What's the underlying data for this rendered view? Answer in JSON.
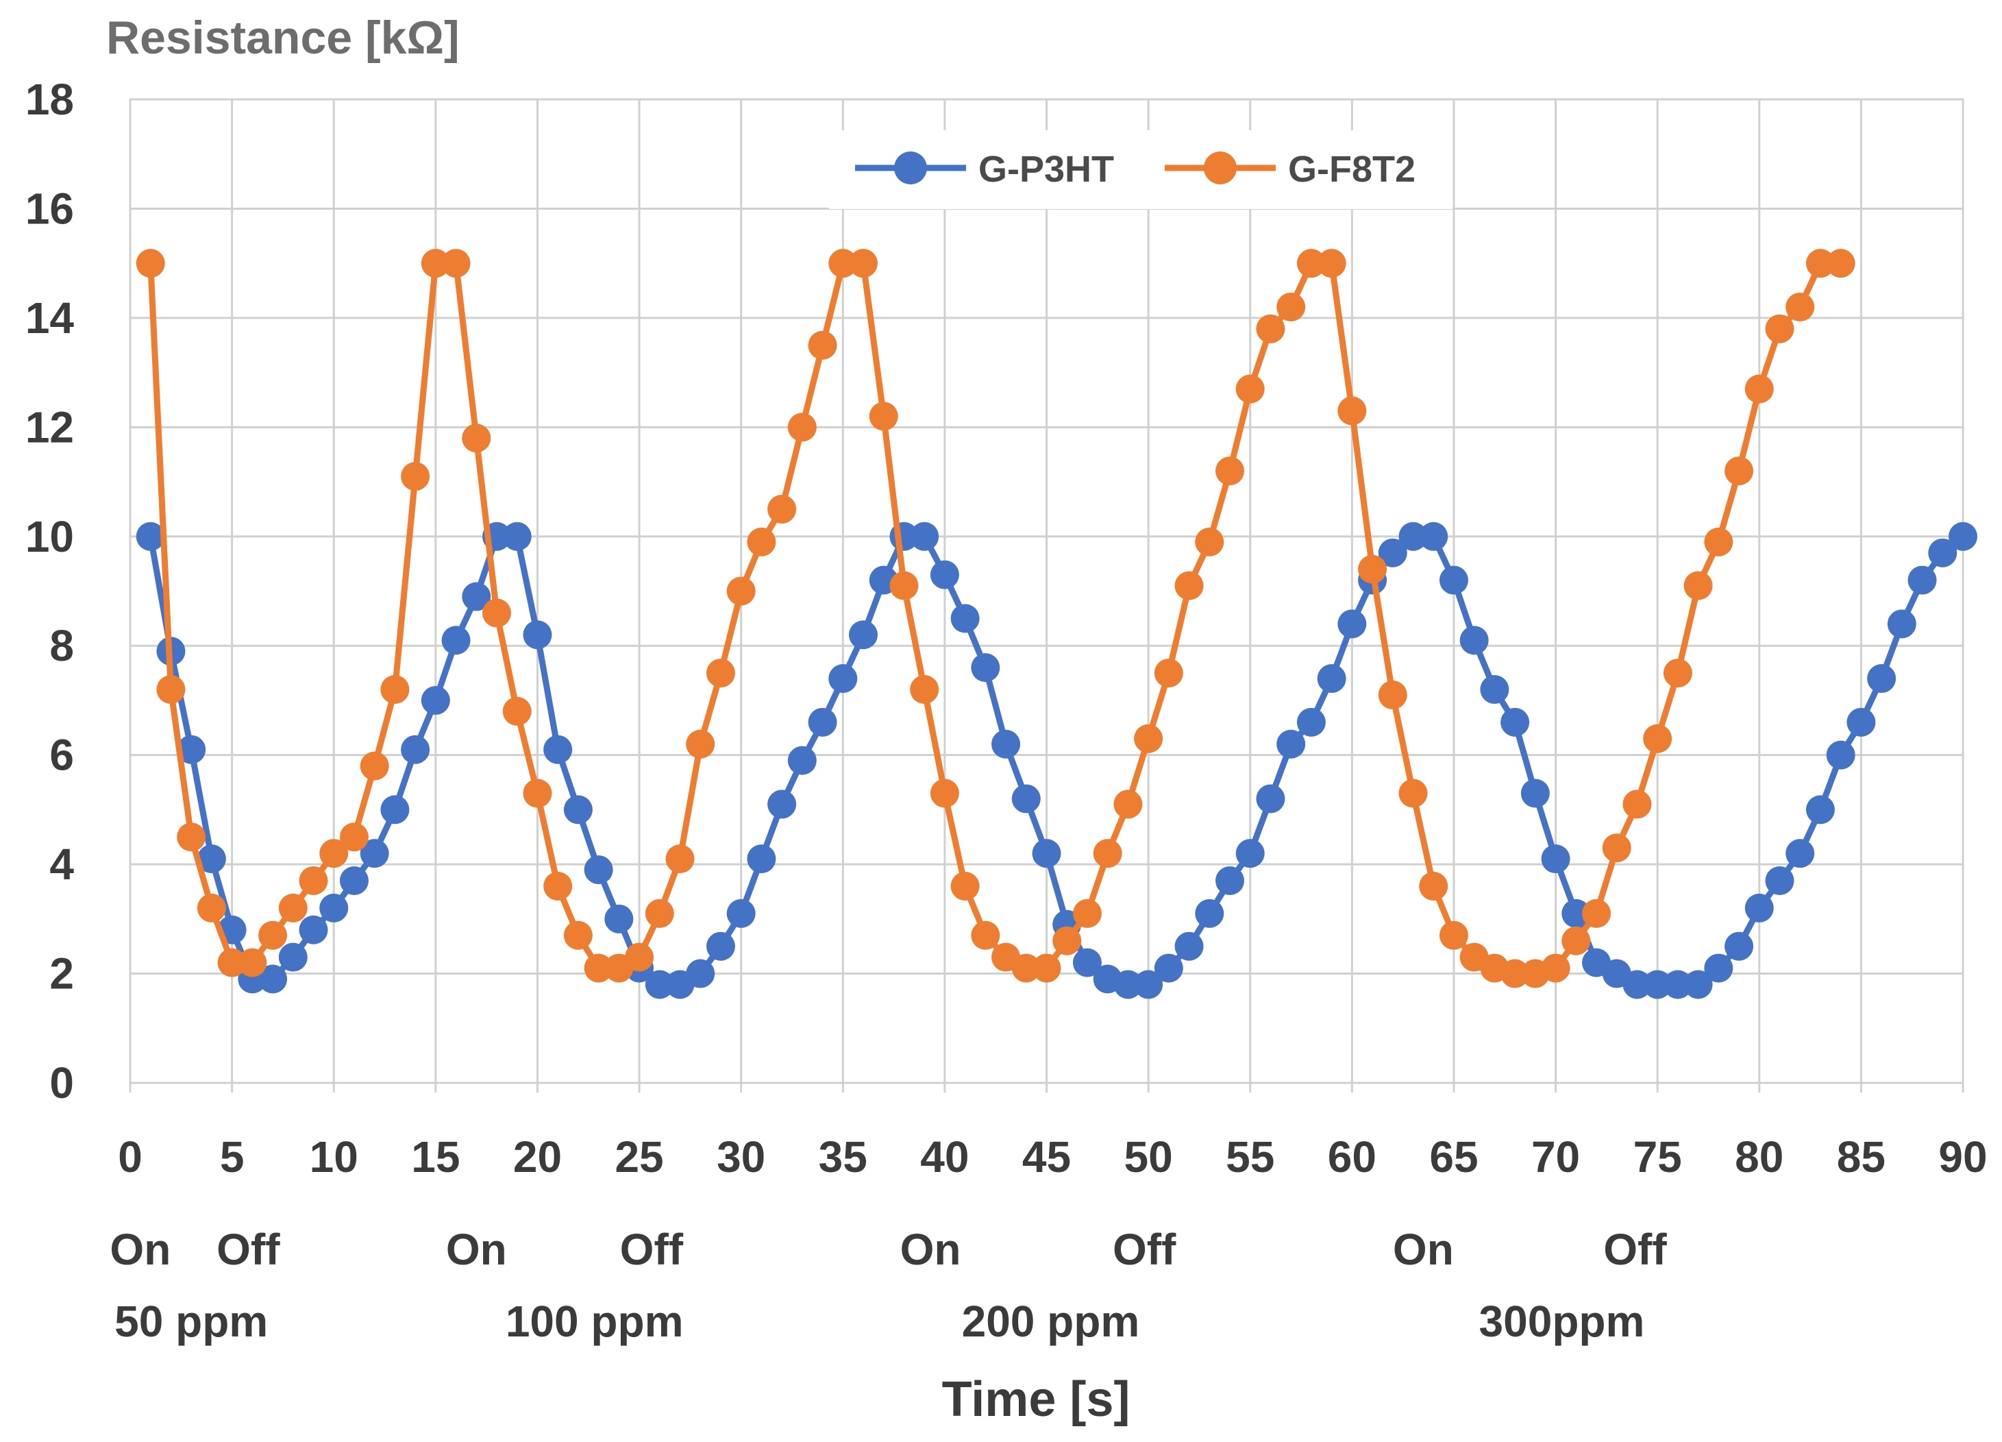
{
  "chart_data": {
    "type": "line",
    "title": "",
    "ylabel": "Resistance [kΩ]",
    "xlabel": "Time [s]",
    "xlim": [
      0,
      90
    ],
    "ylim": [
      0,
      18
    ],
    "xticks": [
      0,
      5,
      10,
      15,
      20,
      25,
      30,
      35,
      40,
      45,
      50,
      55,
      60,
      65,
      70,
      75,
      80,
      85,
      90
    ],
    "yticks": [
      0,
      2,
      4,
      6,
      8,
      10,
      12,
      14,
      16,
      18
    ],
    "grid": true,
    "legend_position": "top-center",
    "annotations": [
      {
        "text": "On",
        "x": 0.5,
        "row": 1
      },
      {
        "text": "Off",
        "x": 5.8,
        "row": 1
      },
      {
        "text": "On",
        "x": 17,
        "row": 1
      },
      {
        "text": "Off",
        "x": 25.6,
        "row": 1
      },
      {
        "text": "On",
        "x": 39.3,
        "row": 1
      },
      {
        "text": "Off",
        "x": 49.8,
        "row": 1
      },
      {
        "text": "On",
        "x": 63.5,
        "row": 1
      },
      {
        "text": "Off",
        "x": 73.9,
        "row": 1
      },
      {
        "text": "50 ppm",
        "x": 3.0,
        "row": 2
      },
      {
        "text": "100 ppm",
        "x": 22.8,
        "row": 2
      },
      {
        "text": "200 ppm",
        "x": 45.2,
        "row": 2
      },
      {
        "text": "300ppm",
        "x": 70.3,
        "row": 2
      }
    ],
    "series": [
      {
        "name": "G-P3HT",
        "color": "#4472C4",
        "x": [
          1,
          2,
          3,
          4,
          5,
          6,
          7,
          8,
          9,
          10,
          11,
          12,
          13,
          14,
          15,
          16,
          17,
          18,
          19,
          20,
          21,
          22,
          23,
          24,
          25,
          26,
          27,
          28,
          29,
          30,
          31,
          32,
          33,
          34,
          35,
          36,
          37,
          38,
          39,
          40,
          41,
          42,
          43,
          44,
          45,
          46,
          47,
          48,
          49,
          50,
          51,
          52,
          53,
          54,
          55,
          56,
          57,
          58,
          59,
          60,
          61,
          62,
          63,
          64,
          65,
          66,
          67,
          68,
          69,
          70,
          71,
          72,
          73,
          74,
          75,
          76,
          77,
          78,
          79,
          80,
          81,
          82,
          83,
          84,
          85,
          86,
          87,
          88,
          89,
          90
        ],
        "values": [
          10,
          7.9,
          6.1,
          4.1,
          2.8,
          1.9,
          1.9,
          2.3,
          2.8,
          3.2,
          3.7,
          4.2,
          5.0,
          6.1,
          7.0,
          8.1,
          8.9,
          10,
          10,
          8.2,
          6.1,
          5.0,
          3.9,
          3.0,
          2.1,
          1.8,
          1.8,
          2.0,
          2.5,
          3.1,
          4.1,
          5.1,
          5.9,
          6.6,
          7.4,
          8.2,
          9.2,
          10,
          10,
          9.3,
          8.5,
          7.6,
          6.2,
          5.2,
          4.2,
          2.9,
          2.2,
          1.9,
          1.8,
          1.8,
          2.1,
          2.5,
          3.1,
          3.7,
          4.2,
          5.2,
          6.2,
          6.6,
          7.4,
          8.4,
          9.2,
          9.7,
          10,
          10,
          9.2,
          8.1,
          7.2,
          6.6,
          5.3,
          4.1,
          3.1,
          2.2,
          2.0,
          1.8,
          1.8,
          1.8,
          1.8,
          2.1,
          2.5,
          3.2,
          3.7,
          4.2,
          5.0,
          6.0,
          6.6,
          7.4,
          8.4,
          9.2,
          9.7,
          10
        ]
      },
      {
        "name": "G-F8T2",
        "color": "#ED7D31",
        "x": [
          1,
          2,
          3,
          4,
          5,
          6,
          7,
          8,
          9,
          10,
          11,
          12,
          13,
          14,
          15,
          16,
          17,
          18,
          19,
          20,
          21,
          22,
          23,
          24,
          25,
          26,
          27,
          28,
          29,
          30,
          31,
          32,
          33,
          34,
          35,
          36,
          37,
          38,
          39,
          40,
          41,
          42,
          43,
          44,
          45,
          46,
          47,
          48,
          49,
          50,
          51,
          52,
          53,
          54,
          55,
          56,
          57,
          58,
          59,
          60,
          61,
          62,
          63,
          64,
          65,
          66,
          67,
          68,
          69,
          70,
          71,
          72,
          73,
          74,
          75,
          76,
          77,
          78,
          79,
          80,
          81,
          82,
          83,
          84
        ],
        "values": [
          15,
          7.2,
          4.5,
          3.2,
          2.2,
          2.2,
          2.7,
          3.2,
          3.7,
          4.2,
          4.5,
          5.8,
          7.2,
          11.1,
          15,
          15,
          11.8,
          8.6,
          6.8,
          5.3,
          3.6,
          2.7,
          2.1,
          2.1,
          2.3,
          3.1,
          4.1,
          6.2,
          7.5,
          9.0,
          9.9,
          10.5,
          12.0,
          13.5,
          15,
          15,
          12.2,
          9.1,
          7.2,
          5.3,
          3.6,
          2.7,
          2.3,
          2.1,
          2.1,
          2.6,
          3.1,
          4.2,
          5.1,
          6.3,
          7.5,
          9.1,
          9.9,
          11.2,
          12.7,
          13.8,
          14.2,
          15,
          15,
          12.3,
          9.4,
          7.1,
          5.3,
          3.6,
          2.7,
          2.3,
          2.1,
          2.0,
          2.0,
          2.1,
          2.6,
          3.1,
          4.3,
          5.1,
          6.3,
          7.5,
          9.1,
          9.9,
          11.2,
          12.7,
          13.8,
          14.2,
          15,
          15
        ]
      }
    ]
  }
}
